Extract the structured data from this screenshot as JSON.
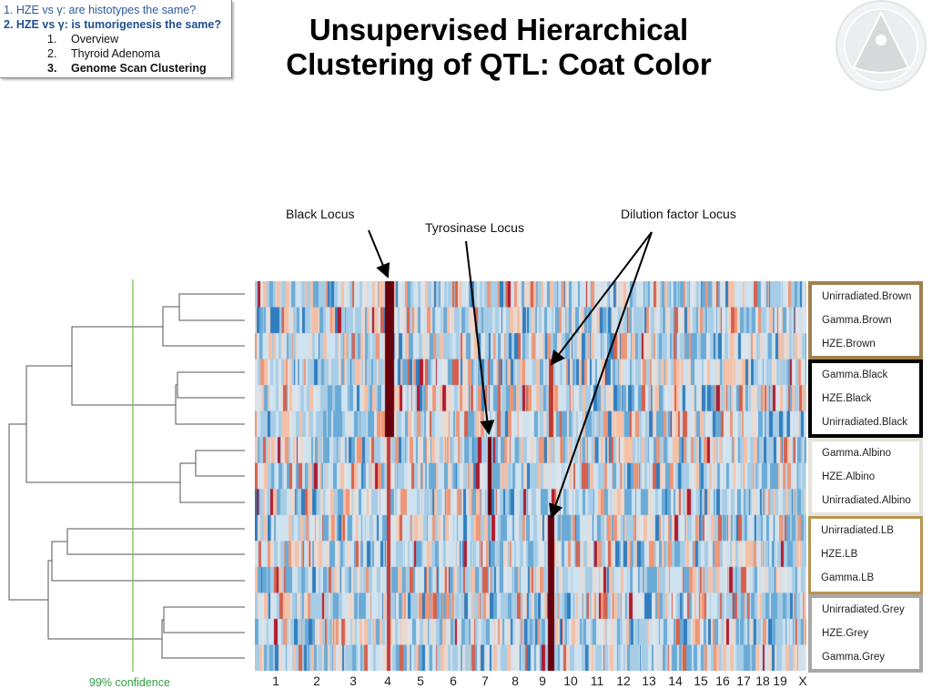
{
  "outline": {
    "item1": "1. HZE vs γ: are histotypes the same?",
    "item2": "2. HZE vs γ: is tumorigenesis the same?",
    "subitems": [
      {
        "num": "1.",
        "label": "Overview"
      },
      {
        "num": "2.",
        "label": "Thyroid Adenoma"
      },
      {
        "num": "3.",
        "label": "Genome Scan Clustering"
      }
    ]
  },
  "title_line1": "Unsupervised Hierarchical",
  "title_line2": "Clustering of QTL: Coat Color",
  "colors": {
    "blue": "#4a90c8",
    "red": "#67000d",
    "brown": "#a08050",
    "black": "#000000",
    "albino": "#e3e3dc",
    "lb": "#b89450",
    "grey": "#a8a8a8",
    "confidence": "#5cb85c"
  },
  "chart_data": {
    "type": "heatmap",
    "title": "Unsupervised Hierarchical Clustering of QTL: Coat Color",
    "columns": [
      "1",
      "2",
      "3",
      "4",
      "5",
      "6",
      "7",
      "8",
      "9",
      "10",
      "11",
      "12",
      "13",
      "14",
      "15",
      "16",
      "17",
      "18",
      "19",
      "X"
    ],
    "groups": [
      {
        "name": "Brown",
        "color": "#a08050",
        "rows": [
          "Unirradiated.Brown",
          "Gamma.Brown",
          "HZE.Brown"
        ]
      },
      {
        "name": "Black",
        "color": "#000000",
        "rows": [
          "Gamma.Black",
          "HZE.Black",
          "Unirradiated.Black"
        ]
      },
      {
        "name": "Albino",
        "color": "#e3e3dc",
        "rows": [
          "Gamma.Albino",
          "HZE.Albino",
          "Unirradiated.Albino"
        ]
      },
      {
        "name": "LB",
        "color": "#b89450",
        "rows": [
          "Unirradiated.LB",
          "HZE.LB",
          "Gamma.LB"
        ]
      },
      {
        "name": "Grey",
        "color": "#a8a8a8",
        "rows": [
          "Unirradiated.Grey",
          "HZE.Grey",
          "Gamma.Grey"
        ]
      }
    ],
    "loci": [
      {
        "label": "Black Locus",
        "chromosome": "4",
        "rows_from": 0,
        "rows_to": 5,
        "strength": 1.0
      },
      {
        "label": "Tyrosinase Locus",
        "chromosome": "7",
        "rows_from": 6,
        "rows_to": 8,
        "strength": 1.0
      },
      {
        "label": "Dilution factor Locus",
        "chromosome": "9",
        "rows_from": 9,
        "rows_to": 14,
        "strength": 1.0,
        "weak_rows_from": 3,
        "weak_rows_to": 5
      }
    ],
    "confidence_label": "99% confidence"
  }
}
